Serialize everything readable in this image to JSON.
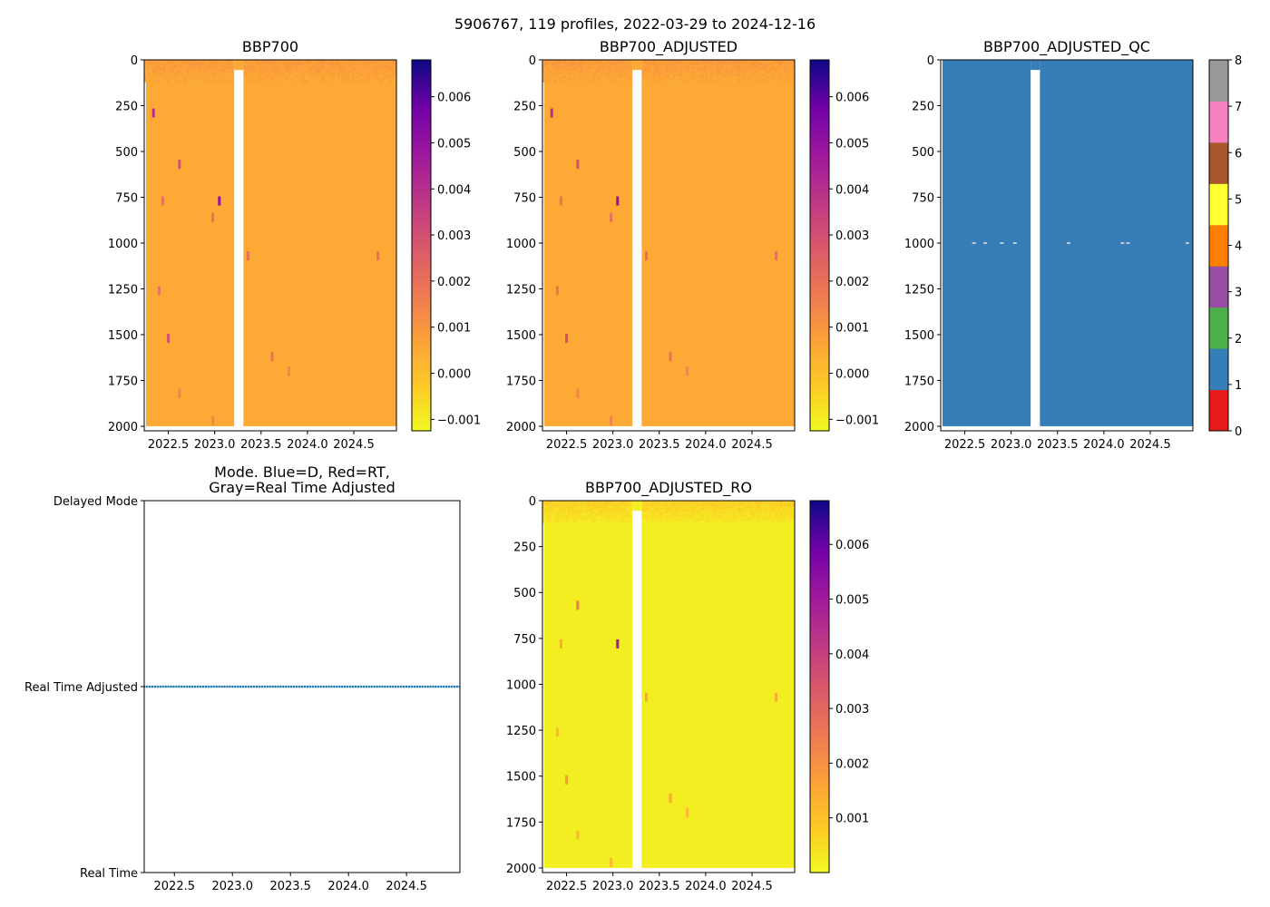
{
  "figure": {
    "suptitle": "5906767, 119 profiles, 2022-03-29 to 2024-12-16"
  },
  "chart_data": [
    {
      "id": "bbp700",
      "type": "heatmap",
      "title": "BBP700",
      "x_range": [
        2022.24,
        2024.96
      ],
      "y_range": [
        0,
        2025
      ],
      "y_inverted": true,
      "x_ticks": [
        "2022.5",
        "2023.0",
        "2023.5",
        "2024.0",
        "2024.5"
      ],
      "x_tick_values": [
        2022.5,
        2023.0,
        2023.5,
        2024.0,
        2024.5
      ],
      "y_ticks": [
        "0",
        "250",
        "500",
        "750",
        "1000",
        "1250",
        "1500",
        "1750",
        "2000"
      ],
      "y_tick_values": [
        0,
        250,
        500,
        750,
        1000,
        1250,
        1500,
        1750,
        2000
      ],
      "data_gap_x": [
        2023.21,
        2023.31
      ],
      "data_gap_depth_start": 55,
      "data_bottom_depth": 2000,
      "colormap": "plasma_r",
      "colorbar": {
        "range": [
          -0.00125,
          0.0068
        ],
        "ticks": [
          "−0.001",
          "0.000",
          "0.001",
          "0.002",
          "0.003",
          "0.004",
          "0.005",
          "0.006"
        ],
        "tick_values": [
          -0.001,
          0.0,
          0.001,
          0.002,
          0.003,
          0.004,
          0.005,
          0.006
        ]
      },
      "typical_value": 0.0005,
      "surface_value": 0.0009,
      "spikes": [
        {
          "x": 2022.34,
          "depth": 290,
          "value": 0.004
        },
        {
          "x": 2022.62,
          "depth": 570,
          "value": 0.003
        },
        {
          "x": 2022.44,
          "depth": 770,
          "value": 0.002
        },
        {
          "x": 2023.05,
          "depth": 770,
          "value": 0.005
        },
        {
          "x": 2022.98,
          "depth": 860,
          "value": 0.002
        },
        {
          "x": 2023.36,
          "depth": 1070,
          "value": 0.002
        },
        {
          "x": 2024.76,
          "depth": 1070,
          "value": 0.002
        },
        {
          "x": 2022.4,
          "depth": 1260,
          "value": 0.002
        },
        {
          "x": 2022.5,
          "depth": 1520,
          "value": 0.003
        },
        {
          "x": 2023.62,
          "depth": 1620,
          "value": 0.002
        },
        {
          "x": 2022.62,
          "depth": 1820,
          "value": 0.0015
        },
        {
          "x": 2023.8,
          "depth": 1700,
          "value": 0.0015
        },
        {
          "x": 2022.98,
          "depth": 1970,
          "value": 0.0015
        }
      ]
    },
    {
      "id": "bbp700_adjusted",
      "type": "heatmap",
      "title": "BBP700_ADJUSTED",
      "x_range": [
        2022.24,
        2024.96
      ],
      "y_range": [
        0,
        2025
      ],
      "y_inverted": true,
      "x_ticks": [
        "2022.5",
        "2023.0",
        "2023.5",
        "2024.0",
        "2024.5"
      ],
      "x_tick_values": [
        2022.5,
        2023.0,
        2023.5,
        2024.0,
        2024.5
      ],
      "y_ticks": [
        "0",
        "250",
        "500",
        "750",
        "1000",
        "1250",
        "1500",
        "1750",
        "2000"
      ],
      "y_tick_values": [
        0,
        250,
        500,
        750,
        1000,
        1250,
        1500,
        1750,
        2000
      ],
      "data_gap_x": [
        2023.21,
        2023.31
      ],
      "data_gap_depth_start": 55,
      "data_bottom_depth": 2000,
      "colormap": "plasma_r",
      "colorbar": {
        "range": [
          -0.00125,
          0.0068
        ],
        "ticks": [
          "−0.001",
          "0.000",
          "0.001",
          "0.002",
          "0.003",
          "0.004",
          "0.005",
          "0.006"
        ],
        "tick_values": [
          -0.001,
          0.0,
          0.001,
          0.002,
          0.003,
          0.004,
          0.005,
          0.006
        ]
      },
      "typical_value": 0.0005,
      "surface_value": 0.0009,
      "spikes": [
        {
          "x": 2022.34,
          "depth": 290,
          "value": 0.004
        },
        {
          "x": 2022.62,
          "depth": 570,
          "value": 0.003
        },
        {
          "x": 2022.44,
          "depth": 770,
          "value": 0.002
        },
        {
          "x": 2023.05,
          "depth": 770,
          "value": 0.005
        },
        {
          "x": 2022.98,
          "depth": 860,
          "value": 0.002
        },
        {
          "x": 2023.36,
          "depth": 1070,
          "value": 0.002
        },
        {
          "x": 2024.76,
          "depth": 1070,
          "value": 0.002
        },
        {
          "x": 2022.4,
          "depth": 1260,
          "value": 0.002
        },
        {
          "x": 2022.5,
          "depth": 1520,
          "value": 0.003
        },
        {
          "x": 2023.62,
          "depth": 1620,
          "value": 0.002
        },
        {
          "x": 2022.62,
          "depth": 1820,
          "value": 0.0015
        },
        {
          "x": 2023.8,
          "depth": 1700,
          "value": 0.0015
        },
        {
          "x": 2022.98,
          "depth": 1970,
          "value": 0.0015
        }
      ]
    },
    {
      "id": "bbp700_adjusted_qc",
      "type": "heatmap",
      "title": "BBP700_ADJUSTED_QC",
      "x_range": [
        2022.24,
        2024.96
      ],
      "y_range": [
        0,
        2025
      ],
      "y_inverted": true,
      "x_ticks": [
        "2022.5",
        "2023.0",
        "2023.5",
        "2024.0",
        "2024.5"
      ],
      "x_tick_values": [
        2022.5,
        2023.0,
        2023.5,
        2024.0,
        2024.5
      ],
      "y_ticks": [
        "0",
        "250",
        "500",
        "750",
        "1000",
        "1250",
        "1500",
        "1750",
        "2000"
      ],
      "y_tick_values": [
        0,
        250,
        500,
        750,
        1000,
        1250,
        1500,
        1750,
        2000
      ],
      "data_gap_x": [
        2023.21,
        2023.31
      ],
      "data_gap_depth_start": 55,
      "data_bottom_depth": 2000,
      "fill_color": "#377eb8",
      "qc_flags_at_1000m": [
        {
          "x": 2022.6,
          "value": 4
        },
        {
          "x": 2022.72,
          "value": 4
        },
        {
          "x": 2022.9,
          "value": 4
        },
        {
          "x": 2023.04,
          "value": 4
        },
        {
          "x": 2023.62,
          "value": 4
        },
        {
          "x": 2024.2,
          "value": 4
        },
        {
          "x": 2024.26,
          "value": 4
        },
        {
          "x": 2024.9,
          "value": 4
        }
      ],
      "colorbar": {
        "type": "categorical",
        "range": [
          0,
          8
        ],
        "ticks": [
          "0",
          "1",
          "2",
          "3",
          "4",
          "5",
          "6",
          "7",
          "8"
        ],
        "tick_values": [
          0,
          1,
          2,
          3,
          4,
          5,
          6,
          7,
          8
        ],
        "colors": [
          "#e41a1c",
          "#377eb8",
          "#4daf4a",
          "#984ea3",
          "#ff7f00",
          "#ffff33",
          "#a65628",
          "#f781bf",
          "#999999"
        ]
      }
    },
    {
      "id": "mode",
      "type": "scatter",
      "title": "Mode. Blue=D, Red=RT,",
      "title_line2": "Gray=Real Time Adjusted",
      "x_range": [
        2022.24,
        2024.96
      ],
      "y_range": [
        0,
        2
      ],
      "x_ticks": [
        "2022.5",
        "2023.0",
        "2023.5",
        "2024.0",
        "2024.5"
      ],
      "x_tick_values": [
        2022.5,
        2023.0,
        2023.5,
        2024.0,
        2024.5
      ],
      "y_ticks": [
        "Real Time",
        "Real Time Adjusted",
        "Delayed Mode"
      ],
      "y_tick_values": [
        0,
        1,
        2
      ],
      "n_profiles": 119,
      "date_start": 2022.24,
      "date_end": 2024.96,
      "mode_value": 1,
      "marker_color": "#1f77b4"
    },
    {
      "id": "bbp700_adjusted_ro",
      "type": "heatmap",
      "title": "BBP700_ADJUSTED_RO",
      "x_range": [
        2022.24,
        2024.96
      ],
      "y_range": [
        0,
        2025
      ],
      "y_inverted": true,
      "x_ticks": [
        "2022.5",
        "2023.0",
        "2023.5",
        "2024.0",
        "2024.5"
      ],
      "x_tick_values": [
        2022.5,
        2023.0,
        2023.5,
        2024.0,
        2024.5
      ],
      "y_ticks": [
        "0",
        "250",
        "500",
        "750",
        "1000",
        "1250",
        "1500",
        "1750",
        "2000"
      ],
      "y_tick_values": [
        0,
        250,
        500,
        750,
        1000,
        1250,
        1500,
        1750,
        2000
      ],
      "data_gap_x": [
        2023.21,
        2023.31
      ],
      "data_gap_depth_start": 55,
      "data_bottom_depth": 2000,
      "colormap": "plasma_r",
      "colorbar": {
        "range": [
          0.0,
          0.0068
        ],
        "ticks": [
          "0.001",
          "0.002",
          "0.003",
          "0.004",
          "0.005",
          "0.006"
        ],
        "tick_values": [
          0.001,
          0.002,
          0.003,
          0.004,
          0.005,
          0.006
        ]
      },
      "typical_value": 0.0002,
      "surface_value": 0.0008,
      "spikes": [
        {
          "x": 2022.62,
          "depth": 570,
          "value": 0.0025
        },
        {
          "x": 2022.44,
          "depth": 780,
          "value": 0.0015
        },
        {
          "x": 2023.05,
          "depth": 780,
          "value": 0.005
        },
        {
          "x": 2023.36,
          "depth": 1070,
          "value": 0.0015
        },
        {
          "x": 2024.76,
          "depth": 1070,
          "value": 0.0015
        },
        {
          "x": 2022.4,
          "depth": 1260,
          "value": 0.0012
        },
        {
          "x": 2022.5,
          "depth": 1520,
          "value": 0.0018
        },
        {
          "x": 2023.62,
          "depth": 1620,
          "value": 0.0015
        },
        {
          "x": 2022.62,
          "depth": 1820,
          "value": 0.0012
        },
        {
          "x": 2023.8,
          "depth": 1700,
          "value": 0.0012
        },
        {
          "x": 2022.98,
          "depth": 1970,
          "value": 0.0012
        }
      ]
    }
  ]
}
